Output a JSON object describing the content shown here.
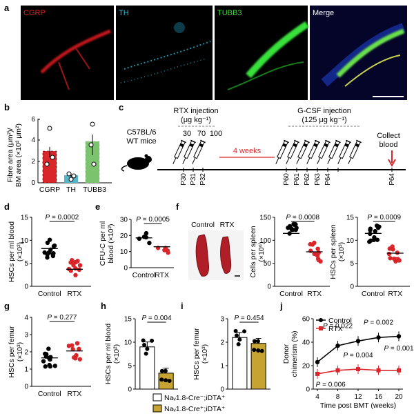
{
  "panel_letters": [
    "a",
    "b",
    "c",
    "d",
    "e",
    "f",
    "g",
    "h",
    "i",
    "j"
  ],
  "panel_a": {
    "channels": [
      {
        "name": "CGRP",
        "color": "#e0201e"
      },
      {
        "name": "TH",
        "color": "#2ec3e0"
      },
      {
        "name": "TUBB3",
        "color": "#3ed83a"
      },
      {
        "name": "Merge",
        "color": "#ffffff"
      }
    ]
  },
  "panel_b": {
    "ylabel_1": "Fibre area (μm²)/",
    "ylabel_2": "BM area (×10³ μm²)",
    "yticks": [
      "0",
      "2",
      "4",
      "6"
    ],
    "categories": [
      "CGRP",
      "TH",
      "TUBB3"
    ],
    "colors": [
      "#d9262a",
      "#58b6c9",
      "#7cc36e"
    ]
  },
  "panel_c": {
    "mouse_label_1": "C57BL/6",
    "mouse_label_2": "WT mice",
    "rtx_title_1": "RTX injection",
    "rtx_title_2": "(μg kg⁻¹)",
    "rtx_doses": [
      "30",
      "70",
      "100"
    ],
    "interval": "4 weeks",
    "gcsf_title_1": "G-CSF injection",
    "gcsf_title_2": "(125 μg kg⁻¹)",
    "collect_1": "Collect",
    "collect_2": "blood",
    "days": [
      "P30",
      "P31",
      "P32",
      "P60",
      "P61",
      "P62",
      "P63",
      "P64",
      "P64"
    ]
  },
  "chart_data": [
    {
      "panel": "d",
      "type": "scatter",
      "categories": [
        "Control",
        "RTX"
      ],
      "ylabel": "HSCs per ml blood",
      "ylabel_2": "(×10²)",
      "yticks": [
        "0",
        "5",
        "10",
        "15"
      ],
      "ylim": [
        0,
        15
      ],
      "means": [
        8.2,
        3.7
      ],
      "pvalue": "P = 0.0002"
    },
    {
      "panel": "e",
      "type": "scatter",
      "categories": [
        "Control",
        "RTX"
      ],
      "ylabel": "CFU-C per ml",
      "ylabel_2": "blood (×10²)",
      "yticks": [
        "0",
        "10",
        "20",
        "30"
      ],
      "ylim": [
        0,
        30
      ],
      "means": [
        18.5,
        13
      ],
      "pvalue": "P = 0.0005"
    },
    {
      "panel": "f-spleen-cells",
      "type": "scatter",
      "categories": [
        "Control",
        "RTX"
      ],
      "ylabel": "Cells per spleen",
      "ylabel_2": "(×10⁶)",
      "yticks": [
        "0",
        "50",
        "100",
        "150"
      ],
      "ylim": [
        0,
        150
      ],
      "means": [
        115,
        75
      ],
      "pvalue": "P = 0.0008"
    },
    {
      "panel": "f-spleen-hscs",
      "type": "scatter",
      "categories": [
        "Control",
        "RTX"
      ],
      "ylabel": "HSCs per spleen",
      "ylabel_2": "(×10³)",
      "yticks": [
        "0",
        "5",
        "10",
        "15"
      ],
      "ylim": [
        0,
        15
      ],
      "means": [
        11.5,
        7.2
      ],
      "pvalue": "P = 0.0009"
    },
    {
      "panel": "g",
      "type": "scatter",
      "categories": [
        "Control",
        "RTX"
      ],
      "ylabel": "HSCs per femur",
      "ylabel_2": "(×10³)",
      "yticks": [
        "0",
        "1",
        "2",
        "3",
        "4"
      ],
      "ylim": [
        0,
        4
      ],
      "means": [
        1.65,
        2.05
      ],
      "pvalue": "P = 0.277"
    },
    {
      "panel": "h",
      "type": "bar",
      "ylabel": "HSCs per ml blood",
      "ylabel_2": "(×10²)",
      "yticks": [
        "0",
        "5",
        "10",
        "15"
      ],
      "ylim": [
        0,
        15
      ],
      "values": [
        9,
        3.4
      ],
      "pvalue": "P = 0.004"
    },
    {
      "panel": "i",
      "type": "bar",
      "ylabel": "HSCs per femur",
      "ylabel_2": "(×10³)",
      "yticks": [
        "0",
        "1",
        "2",
        "3"
      ],
      "ylim": [
        0,
        3
      ],
      "values": [
        2.2,
        1.95
      ],
      "pvalue": "P = 0.454"
    },
    {
      "panel": "j",
      "type": "line",
      "xlabel": "Time post BMT (weeks)",
      "ylabel": "Donor",
      "ylabel_2": "chimerism (%)",
      "x": [
        4,
        8,
        12,
        16,
        20
      ],
      "xticks": [
        "4",
        "8",
        "12",
        "16",
        "20"
      ],
      "yticks": [
        "0",
        "20",
        "40",
        "60"
      ],
      "ylim": [
        0,
        60
      ],
      "series": [
        {
          "name": "Control",
          "values": [
            23,
            37,
            41,
            44,
            45
          ],
          "color": "#000000"
        },
        {
          "name": "RTX",
          "values": [
            13,
            16,
            17,
            16,
            16
          ],
          "color": "#d9262a"
        }
      ],
      "pvalues": [
        "P = 0.022",
        "P = 0.002",
        "P = 0.004",
        "P = 0.001",
        "P = 0.006"
      ]
    }
  ],
  "panel_f_photo_labels": [
    "Control",
    "RTX"
  ],
  "legend": {
    "control_label": "Naᵥ1.8-Cre⁻;iDTA⁺",
    "cre_label": "Naᵥ1.8-Cre⁺;iDTA⁺",
    "cre_color": "#c7a431"
  }
}
